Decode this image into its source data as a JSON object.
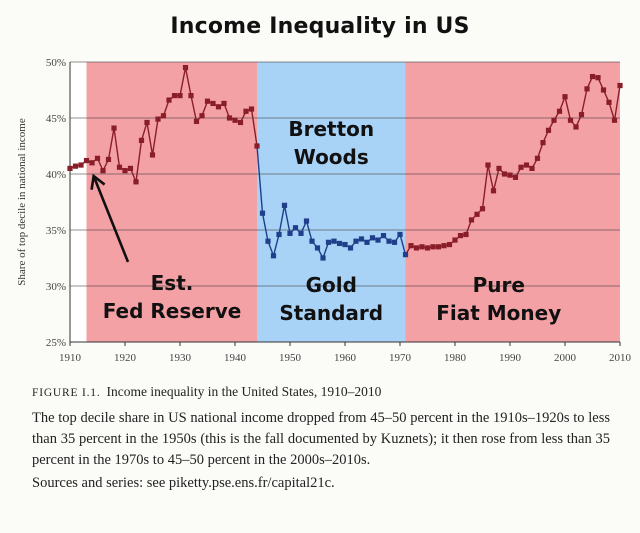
{
  "header": {
    "title": "Income Inequality in US"
  },
  "chart_data": {
    "type": "line",
    "ylabel": "Share of top decile in national income",
    "xlim": [
      1910,
      2010
    ],
    "ylim": [
      25,
      50
    ],
    "x_ticks": [
      "1910",
      "1920",
      "1930",
      "1940",
      "1950",
      "1960",
      "1970",
      "1980",
      "1990",
      "2000",
      "2010"
    ],
    "y_ticks": [
      "25%",
      "30%",
      "35%",
      "40%",
      "45%",
      "50%"
    ],
    "grid": "horizontal",
    "regions": [
      {
        "name": "era-fed-reserve",
        "start": 1913,
        "end": 1944,
        "color": "#f4a1a6",
        "label_lines": [
          "Est.",
          "Fed Reserve"
        ]
      },
      {
        "name": "era-gold-standard",
        "start": 1944,
        "end": 1971,
        "color": "#a8d2f6",
        "label_lines": [
          "Gold",
          "Standard"
        ],
        "top_label_lines": [
          "Bretton",
          "Woods"
        ]
      },
      {
        "name": "era-fiat-money",
        "start": 1971,
        "end": 2010,
        "color": "#f4a1a6",
        "label_lines": [
          "Pure",
          "Fiat Money"
        ]
      }
    ],
    "series": [
      {
        "color_default": "#8a1e28",
        "color_gold_era": "#1f3f8a",
        "x": [
          1910,
          1911,
          1912,
          1913,
          1914,
          1915,
          1916,
          1917,
          1918,
          1919,
          1920,
          1921,
          1922,
          1923,
          1924,
          1925,
          1926,
          1927,
          1928,
          1929,
          1930,
          1931,
          1932,
          1933,
          1934,
          1935,
          1936,
          1937,
          1938,
          1939,
          1940,
          1941,
          1942,
          1943,
          1944,
          1945,
          1946,
          1947,
          1948,
          1949,
          1950,
          1951,
          1952,
          1953,
          1954,
          1955,
          1956,
          1957,
          1958,
          1959,
          1960,
          1961,
          1962,
          1963,
          1964,
          1965,
          1966,
          1967,
          1968,
          1969,
          1970,
          1971,
          1972,
          1973,
          1974,
          1975,
          1976,
          1977,
          1978,
          1979,
          1980,
          1981,
          1982,
          1983,
          1984,
          1985,
          1986,
          1987,
          1988,
          1989,
          1990,
          1991,
          1992,
          1993,
          1994,
          1995,
          1996,
          1997,
          1998,
          1999,
          2000,
          2001,
          2002,
          2003,
          2004,
          2005,
          2006,
          2007,
          2008,
          2009,
          2010
        ],
        "y": [
          40.5,
          40.7,
          40.8,
          41.2,
          41.0,
          41.4,
          40.3,
          41.3,
          44.1,
          40.6,
          40.3,
          40.5,
          39.3,
          43.0,
          44.6,
          41.7,
          44.9,
          45.2,
          46.6,
          47.0,
          47.0,
          49.5,
          47.0,
          44.7,
          45.2,
          46.5,
          46.3,
          46.0,
          46.3,
          45.0,
          44.8,
          44.6,
          45.6,
          45.8,
          42.5,
          36.5,
          34.0,
          32.7,
          34.6,
          37.2,
          34.7,
          35.2,
          34.7,
          35.8,
          34.0,
          33.4,
          32.5,
          33.9,
          34.0,
          33.8,
          33.7,
          33.4,
          34.0,
          34.2,
          33.9,
          34.3,
          34.1,
          34.5,
          34.0,
          33.9,
          34.6,
          32.8,
          33.6,
          33.4,
          33.5,
          33.4,
          33.5,
          33.5,
          33.6,
          33.7,
          34.1,
          34.5,
          34.6,
          35.9,
          36.4,
          36.9,
          40.8,
          38.5,
          40.5,
          40.0,
          39.9,
          39.7,
          40.6,
          40.8,
          40.5,
          41.4,
          42.8,
          43.9,
          44.8,
          45.6,
          46.9,
          44.8,
          44.2,
          45.3,
          47.6,
          48.7,
          48.6,
          47.5,
          46.4,
          44.8,
          47.9
        ]
      }
    ]
  },
  "caption": {
    "label": "FIGURE I.1.",
    "title": "Income inequality in the United States, 1910–2010",
    "body": "The top decile share in US national income dropped from 45–50 percent in the 1910s–1920s to less than 35 percent in the 1950s (this is the fall documented by Kuznets); it then rose from less than 35 percent in the 1970s to 45–50 percent in the 2000s–2010s.",
    "sources": "Sources and series: see piketty.pse.ens.fr/capital21c."
  }
}
